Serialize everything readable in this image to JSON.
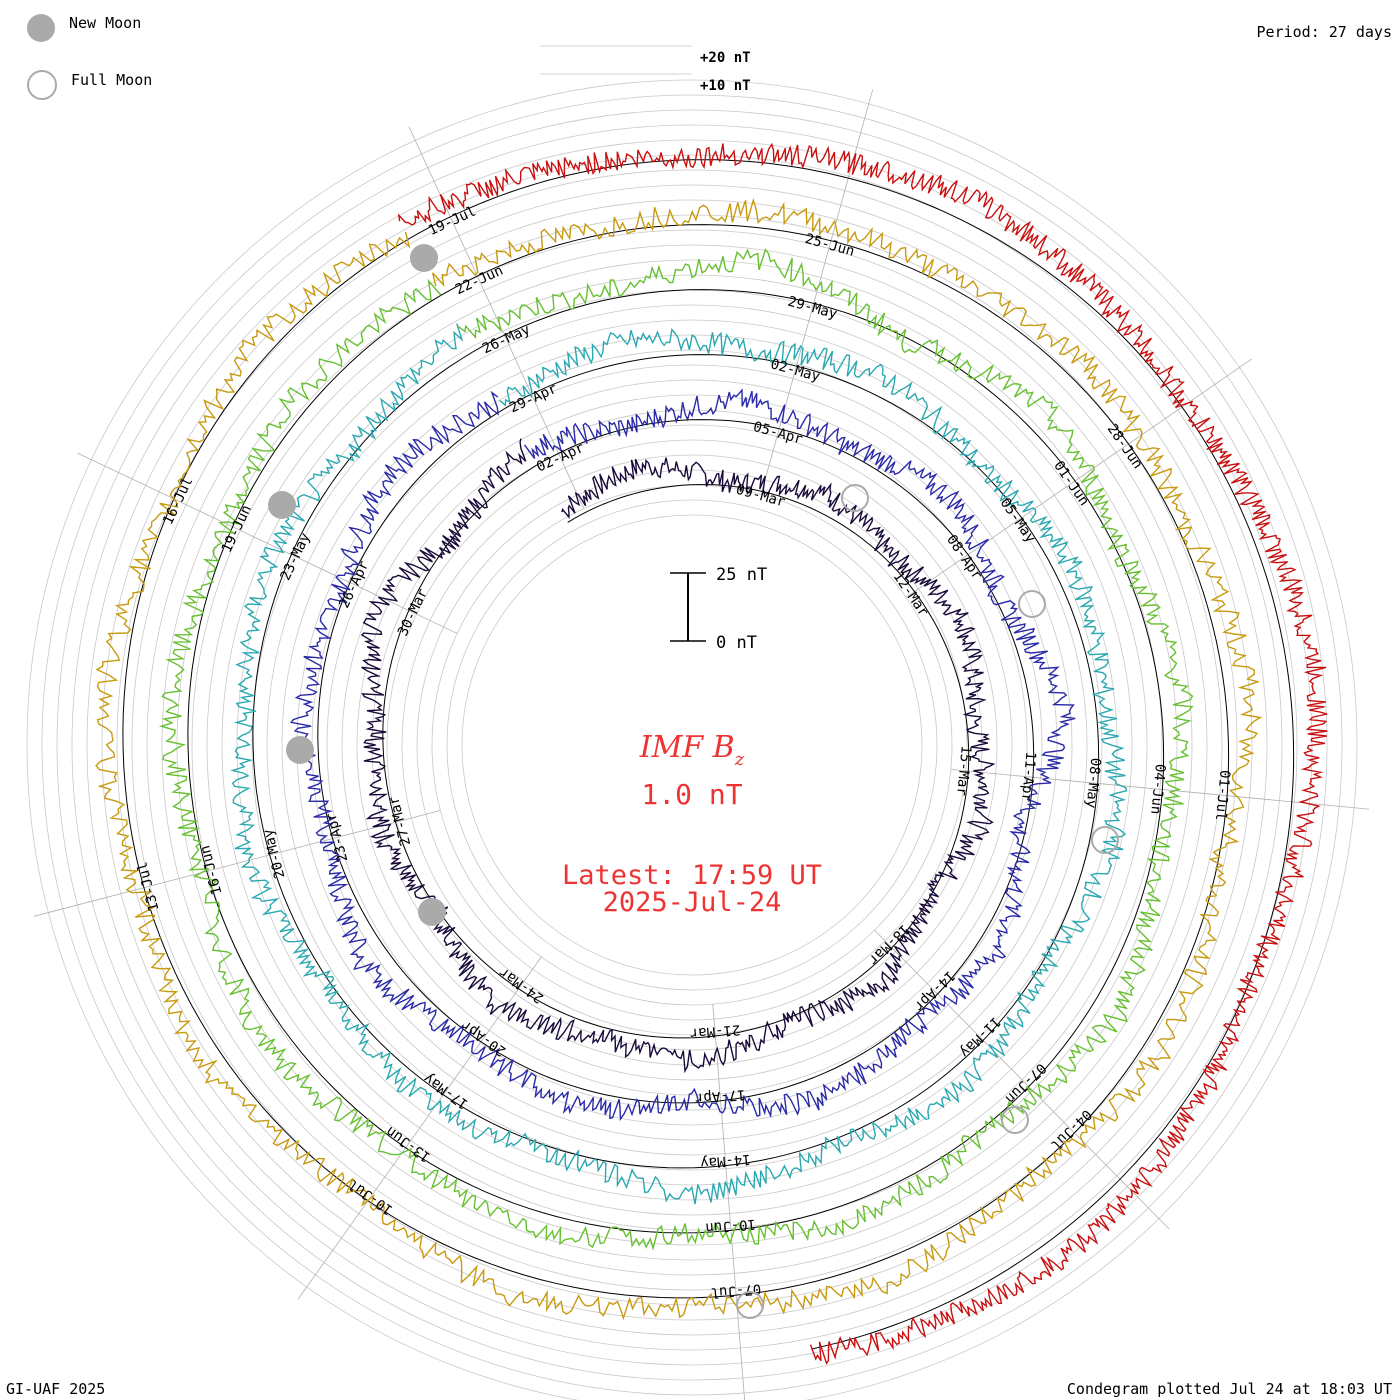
{
  "legend": {
    "new_moon_label": "New Moon",
    "full_moon_label": "Full Moon",
    "new_moon_color": "#aaaaaa",
    "full_moon_color": "#aaaaaa"
  },
  "header": {
    "period_label": "Period: 27 days"
  },
  "footer": {
    "credit": "GI-UAF 2025",
    "plotted": "Condegram plotted Jul 24 at 18:03 UT"
  },
  "center": {
    "quantity_main": "IMF B",
    "quantity_sub": "z",
    "value": "1.0 nT",
    "latest": "Latest: 17:59 UT",
    "date": "2025-Jul-24",
    "text_color": "#ee3333"
  },
  "scale_bar": {
    "top_label": "25 nT",
    "bottom_label": "0 nT"
  },
  "chart_data": {
    "type": "line",
    "title": "IMF Bz",
    "units": "nT",
    "period_days": 27,
    "outer_labels": [
      "+20 nT",
      "+10 nT"
    ],
    "series": [
      {
        "start": "06-Mar",
        "color": "#1a0a3a",
        "date_ticks": [
          "09-Mar",
          "12-Mar",
          "15-Mar",
          "18-Mar",
          "21-Mar",
          "24-Mar",
          "27-Mar",
          "30-Mar",
          "02-Apr"
        ],
        "values": [
          0,
          8,
          -6,
          5,
          -4,
          9,
          -3,
          6,
          -8,
          4,
          -5,
          7,
          -2,
          10,
          -7,
          3,
          -4,
          12,
          -9,
          6
        ]
      },
      {
        "start": "02-Apr",
        "color": "#2a2aa8",
        "date_ticks": [
          "05-Apr",
          "08-Apr",
          "11-Apr",
          "14-Apr",
          "17-Apr",
          "20-Apr",
          "23-Apr",
          "26-Apr",
          "29-Apr"
        ],
        "values": [
          3,
          -7,
          6,
          -4,
          8,
          -6,
          15,
          -12,
          5,
          -3,
          7,
          -9,
          4,
          -5,
          9,
          -6,
          3,
          -4,
          8,
          -2
        ]
      },
      {
        "start": "29-Apr",
        "color": "#2aa8b0",
        "date_ticks": [
          "02-May",
          "05-May",
          "08-May",
          "11-May",
          "14-May",
          "17-May",
          "20-May",
          "23-May",
          "26-May"
        ],
        "values": [
          -4,
          6,
          -3,
          5,
          -7,
          4,
          -2,
          8,
          -6,
          5,
          -4,
          9,
          -5,
          3,
          -6,
          7,
          -3,
          4,
          -5,
          6
        ]
      },
      {
        "start": "26-May",
        "color": "#66c030",
        "date_ticks": [
          "29-May",
          "01-Jun",
          "04-Jun",
          "07-Jun",
          "10-Jun",
          "13-Jun",
          "16-Jun",
          "19-Jun",
          "22-Jun"
        ],
        "values": [
          5,
          -3,
          14,
          -10,
          7,
          -5,
          6,
          -4,
          9,
          -6,
          4,
          -8,
          5,
          -3,
          7,
          -5,
          4,
          -6,
          3,
          -2
        ]
      },
      {
        "start": "22-Jun",
        "color": "#c89a10",
        "date_ticks": [
          "25-Jun",
          "28-Jun",
          "01-Jul",
          "04-Jul",
          "07-Jul",
          "10-Jul",
          "13-Jul",
          "16-Jul",
          "19-Jul"
        ],
        "values": [
          2,
          -4,
          3,
          -2,
          5,
          -3,
          8,
          -6,
          4,
          -5,
          6,
          -3,
          7,
          -8,
          5,
          -4,
          6,
          -7,
          3,
          -5
        ]
      },
      {
        "start": "19-Jul",
        "color": "#c81010",
        "date_ticks": [],
        "values": [
          3,
          -6,
          8,
          -5,
          10,
          -7,
          6,
          -4
        ]
      }
    ],
    "new_moon_dates": [
      "29-Mar",
      "27-Apr",
      "27-May",
      "25-Jun"
    ],
    "full_moon_dates": [
      "13-Mar",
      "13-Apr",
      "12-May",
      "11-Jun",
      "10-Jul"
    ]
  }
}
